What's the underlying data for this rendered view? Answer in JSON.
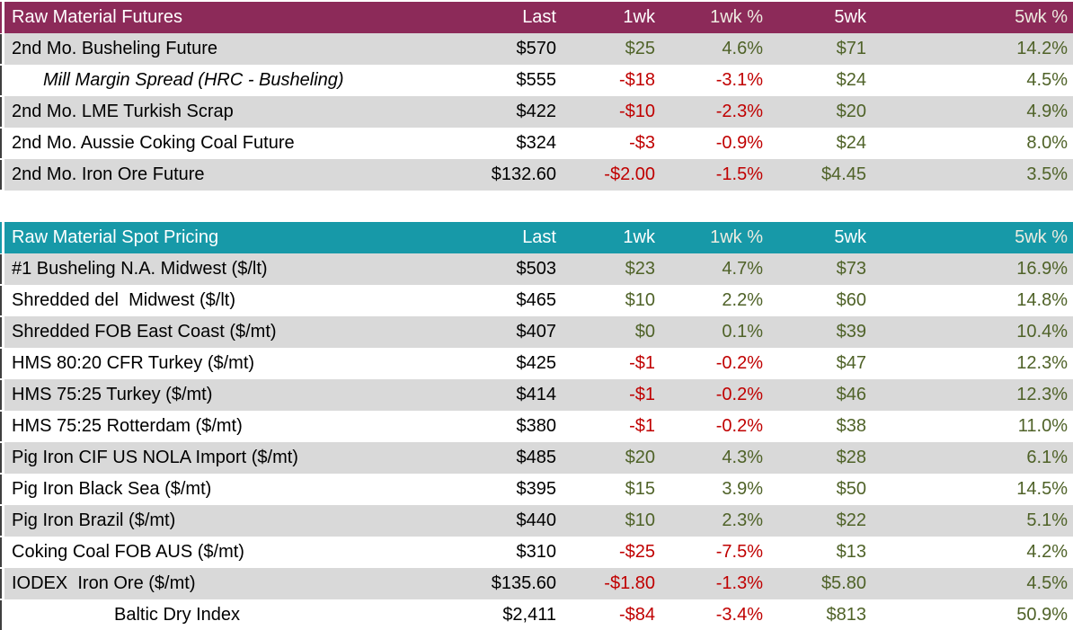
{
  "colors": {
    "positive": "#4F6228",
    "negative": "#C00000",
    "value": "#000000",
    "row_stripe": "#D9D9D9",
    "header_text": "#FFFFFF",
    "header_pct_text": "#EEECE1",
    "edge_tick": "#3F3F3F",
    "futures_header_bg": "#8C2A59",
    "spot_header_bg": "#1799A8"
  },
  "chart_data": [
    {
      "type": "table",
      "title": "Raw Material Futures",
      "header_bg": "#8C2A59",
      "columns": [
        "Last",
        "1wk",
        "1wk %",
        "5wk",
        "5wk %"
      ],
      "rows": [
        {
          "label": "2nd Mo. Busheling Future",
          "style": "",
          "values": [
            "$570",
            "$25",
            "4.6%",
            "$71",
            "14.2%"
          ]
        },
        {
          "label": "Mill Margin Spread (HRC - Busheling)",
          "style": "italic-indent",
          "values": [
            "$555",
            "-$18",
            "-3.1%",
            "$24",
            "4.5%"
          ]
        },
        {
          "label": "2nd Mo. LME Turkish Scrap",
          "style": "",
          "values": [
            "$422",
            "-$10",
            "-2.3%",
            "$20",
            "4.9%"
          ]
        },
        {
          "label": "2nd Mo. Aussie Coking Coal Future",
          "style": "",
          "values": [
            "$324",
            "-$3",
            "-0.9%",
            "$24",
            "8.0%"
          ]
        },
        {
          "label": "2nd Mo. Iron Ore Future",
          "style": "",
          "values": [
            "$132.60",
            "-$2.00",
            "-1.5%",
            "$4.45",
            "3.5%"
          ]
        }
      ]
    },
    {
      "type": "table",
      "title": "Raw Material Spot Pricing",
      "header_bg": "#1799A8",
      "columns": [
        "Last",
        "1wk",
        "1wk %",
        "5wk",
        "5wk %"
      ],
      "rows": [
        {
          "label": "#1 Busheling N.A. Midwest ($/lt)",
          "style": "",
          "values": [
            "$503",
            "$23",
            "4.7%",
            "$73",
            "16.9%"
          ]
        },
        {
          "label": "Shredded del  Midwest ($/lt)",
          "style": "",
          "values": [
            "$465",
            "$10",
            "2.2%",
            "$60",
            "14.8%"
          ]
        },
        {
          "label": "Shredded FOB East Coast ($/mt)",
          "style": "",
          "values": [
            "$407",
            "$0",
            "0.1%",
            "$39",
            "10.4%"
          ]
        },
        {
          "label": "HMS 80:20 CFR Turkey ($/mt)",
          "style": "",
          "values": [
            "$425",
            "-$1",
            "-0.2%",
            "$47",
            "12.3%"
          ]
        },
        {
          "label": "HMS 75:25 Turkey ($/mt)",
          "style": "",
          "values": [
            "$414",
            "-$1",
            "-0.2%",
            "$46",
            "12.3%"
          ]
        },
        {
          "label": "HMS 75:25 Rotterdam ($/mt)",
          "style": "",
          "values": [
            "$380",
            "-$1",
            "-0.2%",
            "$38",
            "11.0%"
          ]
        },
        {
          "label": "Pig Iron CIF US NOLA Import ($/mt)",
          "style": "",
          "values": [
            "$485",
            "$20",
            "4.3%",
            "$28",
            "6.1%"
          ]
        },
        {
          "label": "Pig Iron Black Sea ($/mt)",
          "style": "",
          "values": [
            "$395",
            "$15",
            "3.9%",
            "$50",
            "14.5%"
          ]
        },
        {
          "label": "Pig Iron Brazil ($/mt)",
          "style": "",
          "values": [
            "$440",
            "$10",
            "2.3%",
            "$22",
            "5.1%"
          ]
        },
        {
          "label": "Coking Coal FOB AUS ($/mt)",
          "style": "",
          "values": [
            "$310",
            "-$25",
            "-7.5%",
            "$13",
            "4.2%"
          ]
        },
        {
          "label": "IODEX  Iron Ore ($/mt)",
          "style": "",
          "values": [
            "$135.60",
            "-$1.80",
            "-1.3%",
            "$5.80",
            "4.5%"
          ]
        },
        {
          "label": "Baltic Dry Index",
          "style": "indent-wide",
          "values": [
            "$2,411",
            "-$84",
            "-3.4%",
            "$813",
            "50.9%"
          ]
        }
      ]
    }
  ]
}
